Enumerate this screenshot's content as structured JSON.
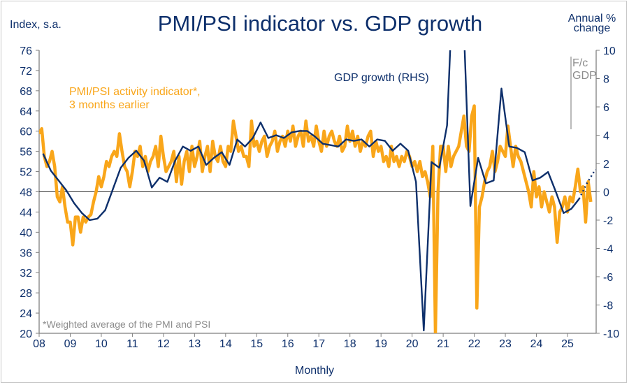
{
  "chart_data": {
    "type": "line",
    "title": "PMI/PSI indicator vs. GDP growth",
    "xlabel": "Monthly",
    "ylabel_left": "Index, s.a.",
    "ylabel_right_line1": "Annual %",
    "ylabel_right_line2": "change",
    "ylim_left": [
      20,
      76
    ],
    "ylim_right": [
      -10,
      10
    ],
    "yticks_left": [
      20,
      24,
      28,
      32,
      36,
      40,
      44,
      48,
      52,
      56,
      60,
      64,
      68,
      72,
      76
    ],
    "yticks_right": [
      -10,
      -8,
      -6,
      -4,
      -2,
      0,
      2,
      4,
      6,
      8,
      10
    ],
    "xticks": [
      "08",
      "09",
      "10",
      "11",
      "12",
      "13",
      "14",
      "15",
      "16",
      "17",
      "18",
      "19",
      "20",
      "21",
      "22",
      "23",
      "24",
      "25"
    ],
    "xlim": [
      2008.0,
      2025.95
    ],
    "footnote": "*Weighted average of the PMI and PSI",
    "forecast_label_line1": "F/c",
    "forecast_label_line2": "GDP",
    "zero_line_left_value": 48,
    "colors": {
      "pmi": "#f9a61a",
      "gdp": "#0d2f6b",
      "axis": "#7f7f7f",
      "zero": "#333333"
    },
    "series": [
      {
        "name": "PMI/PSI activity indicator*, 3 months earlier",
        "legend_line1": "PMI/PSI activity indicator*,",
        "legend_line2": "3 months earlier",
        "axis": "left",
        "frequency": "monthly",
        "start": 2008.0,
        "values": [
          59.5,
          60.5,
          55,
          53,
          54,
          56,
          53,
          47,
          46,
          49,
          45,
          42,
          42,
          37.5,
          43,
          43,
          40,
          43,
          42,
          43,
          43.5,
          46,
          48,
          51,
          49,
          51,
          54,
          53,
          55,
          56,
          55,
          59.5,
          56,
          53,
          52,
          49,
          52,
          56,
          55,
          57,
          53,
          55,
          52,
          54,
          55,
          57,
          53,
          59,
          55,
          52,
          53,
          54,
          56,
          50,
          55,
          49.5,
          54,
          56,
          52,
          57,
          53,
          55,
          58,
          52,
          55,
          57,
          52,
          58,
          55,
          54,
          57,
          54,
          53,
          57,
          56,
          62,
          59,
          56,
          57,
          55,
          55,
          53,
          62,
          57,
          58,
          56,
          58,
          59,
          55,
          57,
          58,
          60,
          56,
          58,
          59,
          57,
          60,
          58,
          61,
          57,
          59,
          60,
          57,
          62,
          58,
          59,
          57,
          61,
          58,
          56,
          60,
          57,
          59,
          60,
          58,
          57,
          59,
          56,
          57,
          61,
          58,
          60,
          57,
          59,
          56,
          58,
          57,
          59,
          60,
          55,
          58,
          56,
          57,
          54,
          55,
          53,
          57,
          54,
          55,
          53,
          55,
          54,
          56,
          55,
          53,
          54,
          52,
          54,
          51,
          52,
          50,
          47,
          57,
          20,
          48,
          57,
          57,
          52,
          57,
          53,
          55,
          56,
          57,
          60,
          63,
          57,
          56,
          63,
          65,
          25,
          45,
          47,
          50,
          52,
          53,
          56,
          52,
          54,
          57,
          56,
          55,
          61,
          57,
          53,
          57,
          55,
          54,
          52,
          50,
          48,
          45,
          52,
          47,
          49,
          45,
          48,
          46,
          44,
          47,
          45,
          38,
          44,
          45,
          47,
          44,
          47,
          46,
          49,
          52.5,
          48,
          49,
          42,
          50,
          46
        ]
      },
      {
        "name": "GDP growth (RHS)",
        "axis": "right",
        "frequency": "quarterly",
        "start": 2008.0,
        "values": [
          2.7,
          1.5,
          0.8,
          0.1,
          -0.8,
          -1.5,
          -2.0,
          -1.9,
          -1.3,
          0.2,
          1.7,
          2.4,
          2.9,
          2.2,
          0.3,
          1.0,
          0.7,
          2.2,
          3.2,
          2.9,
          3.2,
          1.9,
          2.4,
          2.8,
          1.9,
          3.7,
          3.2,
          3.8,
          4.9,
          3.8,
          4.0,
          3.8,
          4.2,
          4.3,
          4.3,
          3.9,
          3.4,
          3.3,
          3.2,
          3.7,
          3.6,
          3.7,
          3.2,
          3.7,
          3.6,
          2.9,
          3.4,
          2.9,
          0.7,
          -9.8,
          2.1,
          1.7,
          4.7,
          18.0,
          14.0,
          -1.0,
          2.4,
          0.6,
          0.8,
          7.3,
          3.2,
          3.1,
          2.8,
          0.8,
          1.0,
          1.4,
          0.0,
          -1.5,
          -1.2,
          -0.5
        ],
        "forecast": {
          "start": 2025.25,
          "values": [
            -0.5,
            0.6,
            1.5,
            1.7
          ]
        }
      }
    ]
  }
}
